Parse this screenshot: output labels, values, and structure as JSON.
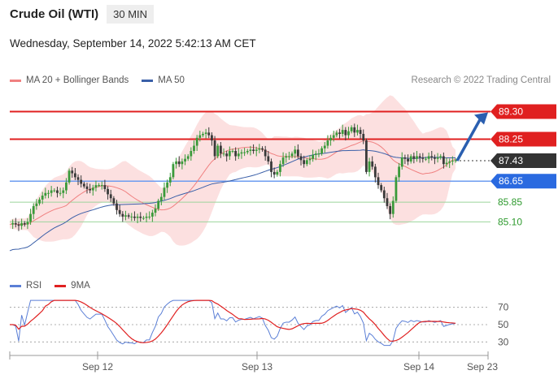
{
  "header": {
    "title": "Crude Oil (WTI)",
    "timeframe": "30 MIN"
  },
  "datetime": "Wednesday, September 14, 2022 5:42:13 AM CET",
  "legend": {
    "ma20": "MA 20 + Bollinger Bands",
    "ma50": "MA 50",
    "ma20_color": "#f08080",
    "ma50_color": "#3a5fa8"
  },
  "credit": "Research © 2022 Trading Central",
  "rsi_legend": {
    "rsi": "RSI",
    "ma9": "9MA",
    "rsi_color": "#5b7fd6",
    "ma9_color": "#e02020"
  },
  "chart_data": [
    {
      "type": "candlestick",
      "title": "Crude Oil (WTI)",
      "levels": [
        {
          "value": 89.3,
          "label": "89.30",
          "kind": "resistance",
          "color": "#e02020"
        },
        {
          "value": 88.25,
          "label": "88.25",
          "kind": "resistance",
          "color": "#e02020"
        },
        {
          "value": 87.43,
          "label": "87.43",
          "kind": "last",
          "color": "#333333"
        },
        {
          "value": 86.65,
          "label": "86.65",
          "kind": "pivot",
          "color": "#2a6ae0"
        },
        {
          "value": 85.85,
          "label": "85.85",
          "kind": "support",
          "color": "#2e9a2e"
        },
        {
          "value": 85.1,
          "label": "85.10",
          "kind": "support",
          "color": "#2e9a2e"
        }
      ],
      "x_ticks": [
        "Sep 12",
        "Sep 13",
        "Sep 14",
        "Sep 23"
      ],
      "ylim": [
        83.35,
        89.5
      ],
      "close": [
        85.0,
        85.05,
        85.0,
        84.95,
        85.05,
        85.0,
        85.1,
        85.4,
        85.7,
        85.8,
        85.95,
        86.1,
        86.2,
        86.2,
        86.3,
        86.3,
        86.2,
        86.2,
        86.3,
        86.6,
        87.05,
        86.95,
        86.8,
        86.7,
        86.55,
        86.45,
        86.35,
        86.3,
        86.4,
        86.5,
        86.5,
        86.5,
        86.35,
        86.15,
        86.0,
        85.8,
        85.55,
        85.4,
        85.3,
        85.35,
        85.3,
        85.3,
        85.25,
        85.3,
        85.25,
        85.25,
        85.3,
        85.3,
        85.45,
        85.6,
        85.9,
        86.05,
        86.4,
        86.6,
        86.8,
        87.3,
        87.4,
        87.3,
        87.4,
        87.5,
        87.6,
        87.8,
        88.0,
        88.3,
        88.4,
        88.45,
        88.5,
        88.4,
        88.2,
        87.6,
        88.0,
        87.7,
        87.7,
        87.6,
        87.8,
        87.8,
        87.6,
        87.7,
        87.75,
        87.75,
        87.8,
        87.85,
        87.8,
        87.85,
        87.9,
        87.85,
        87.6,
        87.4,
        87.0,
        86.9,
        87.0,
        87.3,
        87.55,
        87.6,
        87.6,
        87.7,
        87.85,
        87.6,
        87.45,
        87.3,
        87.45,
        87.5,
        87.65,
        87.7,
        87.7,
        87.9,
        88.0,
        88.2,
        88.3,
        88.4,
        88.5,
        88.45,
        88.6,
        88.4,
        88.55,
        88.7,
        88.5,
        88.6,
        88.45,
        88.2,
        87.0,
        87.4,
        87.2,
        86.8,
        86.5,
        86.3,
        86.0,
        85.7,
        85.4,
        85.9,
        86.8,
        87.2,
        87.55,
        87.5,
        87.4,
        87.6,
        87.5,
        87.6,
        87.55,
        87.5,
        87.5,
        87.6,
        87.55,
        87.5,
        87.55,
        87.6,
        87.3,
        87.35,
        87.4,
        87.43,
        87.45
      ],
      "rsi": {
        "levels": [
          70,
          50,
          30
        ],
        "ylim": [
          20,
          80
        ]
      }
    }
  ]
}
